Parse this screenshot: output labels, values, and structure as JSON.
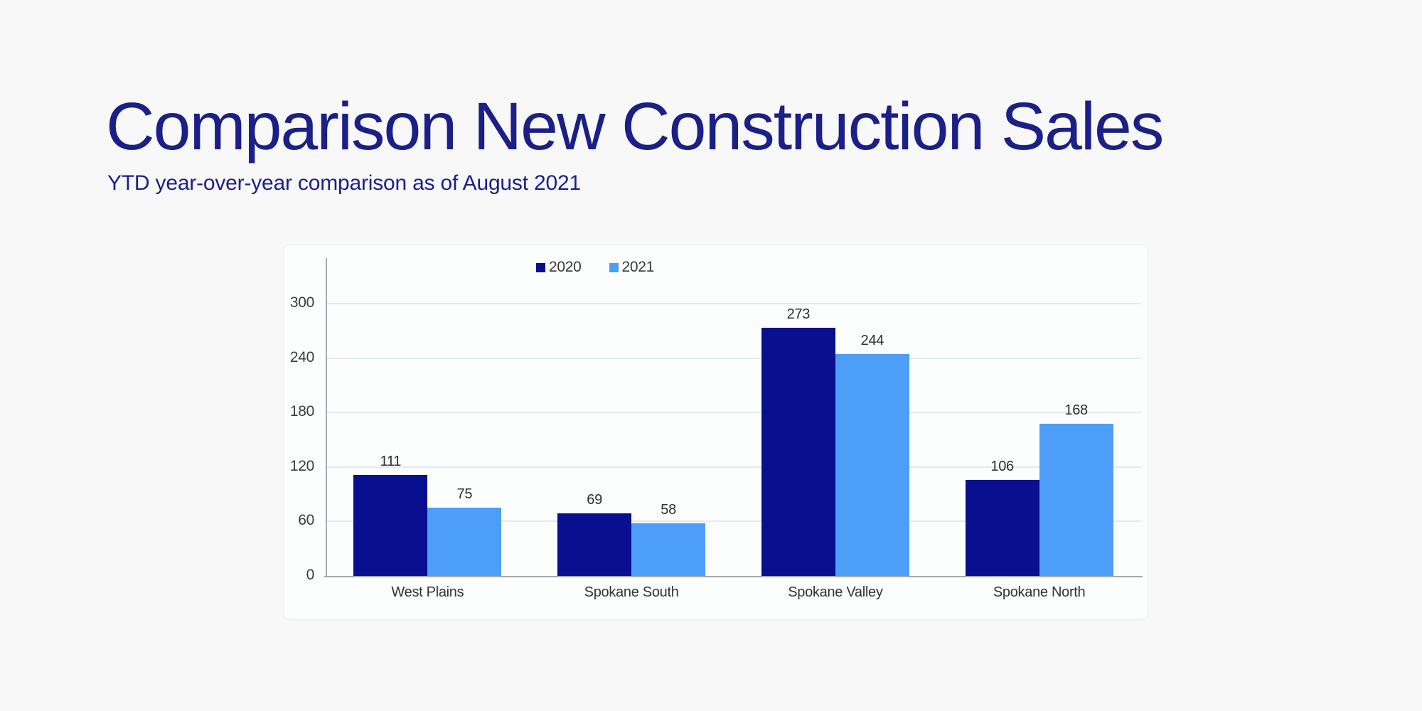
{
  "page": {
    "background_color": "#f7f8f7",
    "accent_navy": "#1b1f88"
  },
  "header": {
    "title": "Comparison New Construction Sales",
    "subtitle": "YTD year-over-year comparison as of August 2021"
  },
  "chart_data": {
    "type": "bar",
    "title": "",
    "xlabel": "",
    "ylabel": "",
    "categories": [
      "West Plains",
      "Spokane South",
      "Spokane Valley",
      "Spokane North"
    ],
    "series": [
      {
        "name": "2020",
        "color": "#081090",
        "values": [
          111,
          69,
          273,
          106
        ]
      },
      {
        "name": "2021",
        "color": "#4d9ef7",
        "values": [
          75,
          58,
          244,
          168
        ]
      }
    ],
    "y_ticks": [
      0,
      60,
      120,
      180,
      240,
      300
    ],
    "ylim": [
      0,
      330
    ],
    "grid": true,
    "legend_position": "top-center",
    "value_labels": true,
    "colors": {
      "gridline": "#e0eaf2",
      "axis_line": "#a5abb0",
      "tick_text": "#3c3c3c",
      "value_text": "#2e2e2e"
    }
  }
}
